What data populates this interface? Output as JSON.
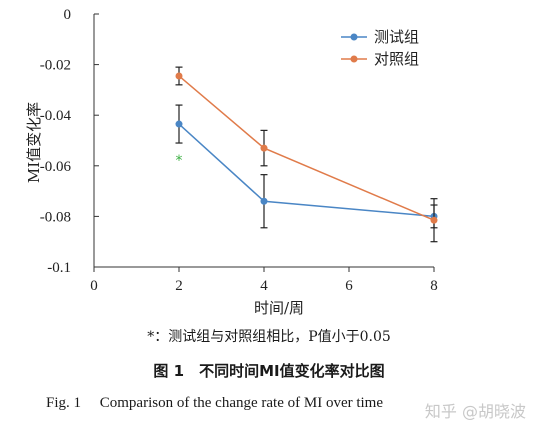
{
  "chart_data": {
    "type": "line",
    "xlabel": "时间/周",
    "ylabel": "MI值变化率",
    "xlim": [
      0,
      8
    ],
    "ylim": [
      -0.1,
      0
    ],
    "xticks": [
      0,
      2,
      4,
      6,
      8
    ],
    "yticks": [
      0,
      -0.02,
      -0.04,
      -0.06,
      -0.08,
      -0.1
    ],
    "xtick_labels": [
      "0",
      "2",
      "4",
      "6",
      "8"
    ],
    "ytick_labels": [
      "0",
      "-0.02",
      "-0.04",
      "-0.06",
      "-0.08",
      "-0.1"
    ],
    "grid": false,
    "legend_position": "top-right",
    "series": [
      {
        "name": "测试组",
        "color": "#4a86c5",
        "x": [
          2,
          4,
          8
        ],
        "y": [
          -0.0435,
          -0.074,
          -0.08
        ],
        "error": [
          0.0075,
          0.0105,
          0.0045
        ]
      },
      {
        "name": "对照组",
        "color": "#e07b4a",
        "x": [
          2,
          4,
          8
        ],
        "y": [
          -0.0245,
          -0.053,
          -0.0815
        ],
        "error": [
          0.0035,
          0.007,
          0.0085
        ]
      }
    ],
    "annotations": [
      {
        "text": "*",
        "x": 2,
        "y": -0.0565,
        "color": "#3cb043"
      }
    ]
  },
  "captions": {
    "note": "*：测试组与对照组相比，P值小于0.05",
    "figure_cn": "图 1　不同时间MI值变化率对比图",
    "figure_en": "Fig. 1　 Comparison of the change rate of MI over time"
  },
  "watermark": "知乎 @胡晓波"
}
